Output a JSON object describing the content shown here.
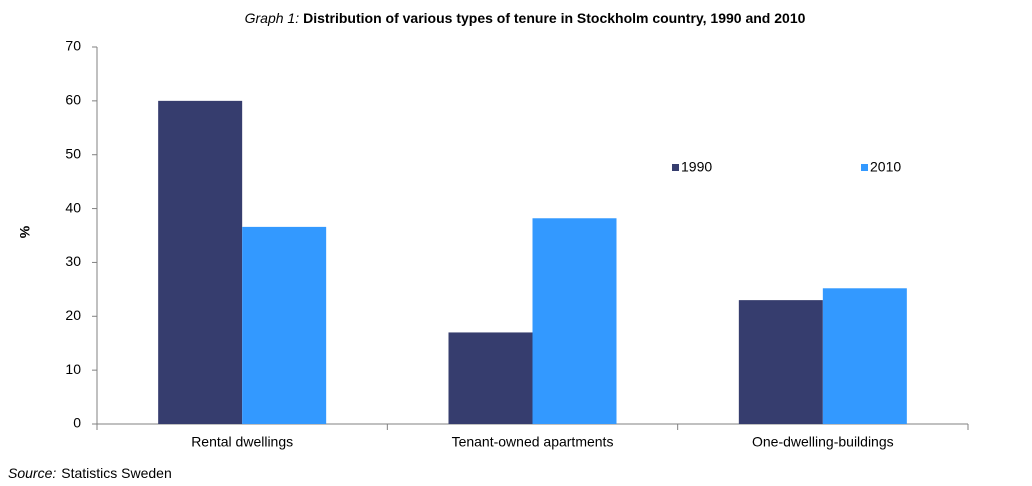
{
  "chart_data": {
    "type": "bar",
    "title_prefix": "Graph 1:",
    "title": "Distribution of various types of tenure in Stockholm country, 1990 and 2010",
    "y_label": "%",
    "source_prefix": "Source:",
    "source": "Statistics Sweden",
    "categories": [
      "Rental dwellings",
      "Tenant-owned apartments",
      "One-dwelling-buildings"
    ],
    "series": [
      {
        "name": "1990",
        "color": "#363d6e",
        "values": [
          60,
          17,
          23
        ]
      },
      {
        "name": "2010",
        "color": "#3399ff",
        "values": [
          36.6,
          38.2,
          25.2
        ]
      }
    ],
    "ylim": [
      0,
      70
    ],
    "yticks": [
      0,
      10,
      20,
      30,
      40,
      50,
      60,
      70
    ],
    "grid": false
  }
}
